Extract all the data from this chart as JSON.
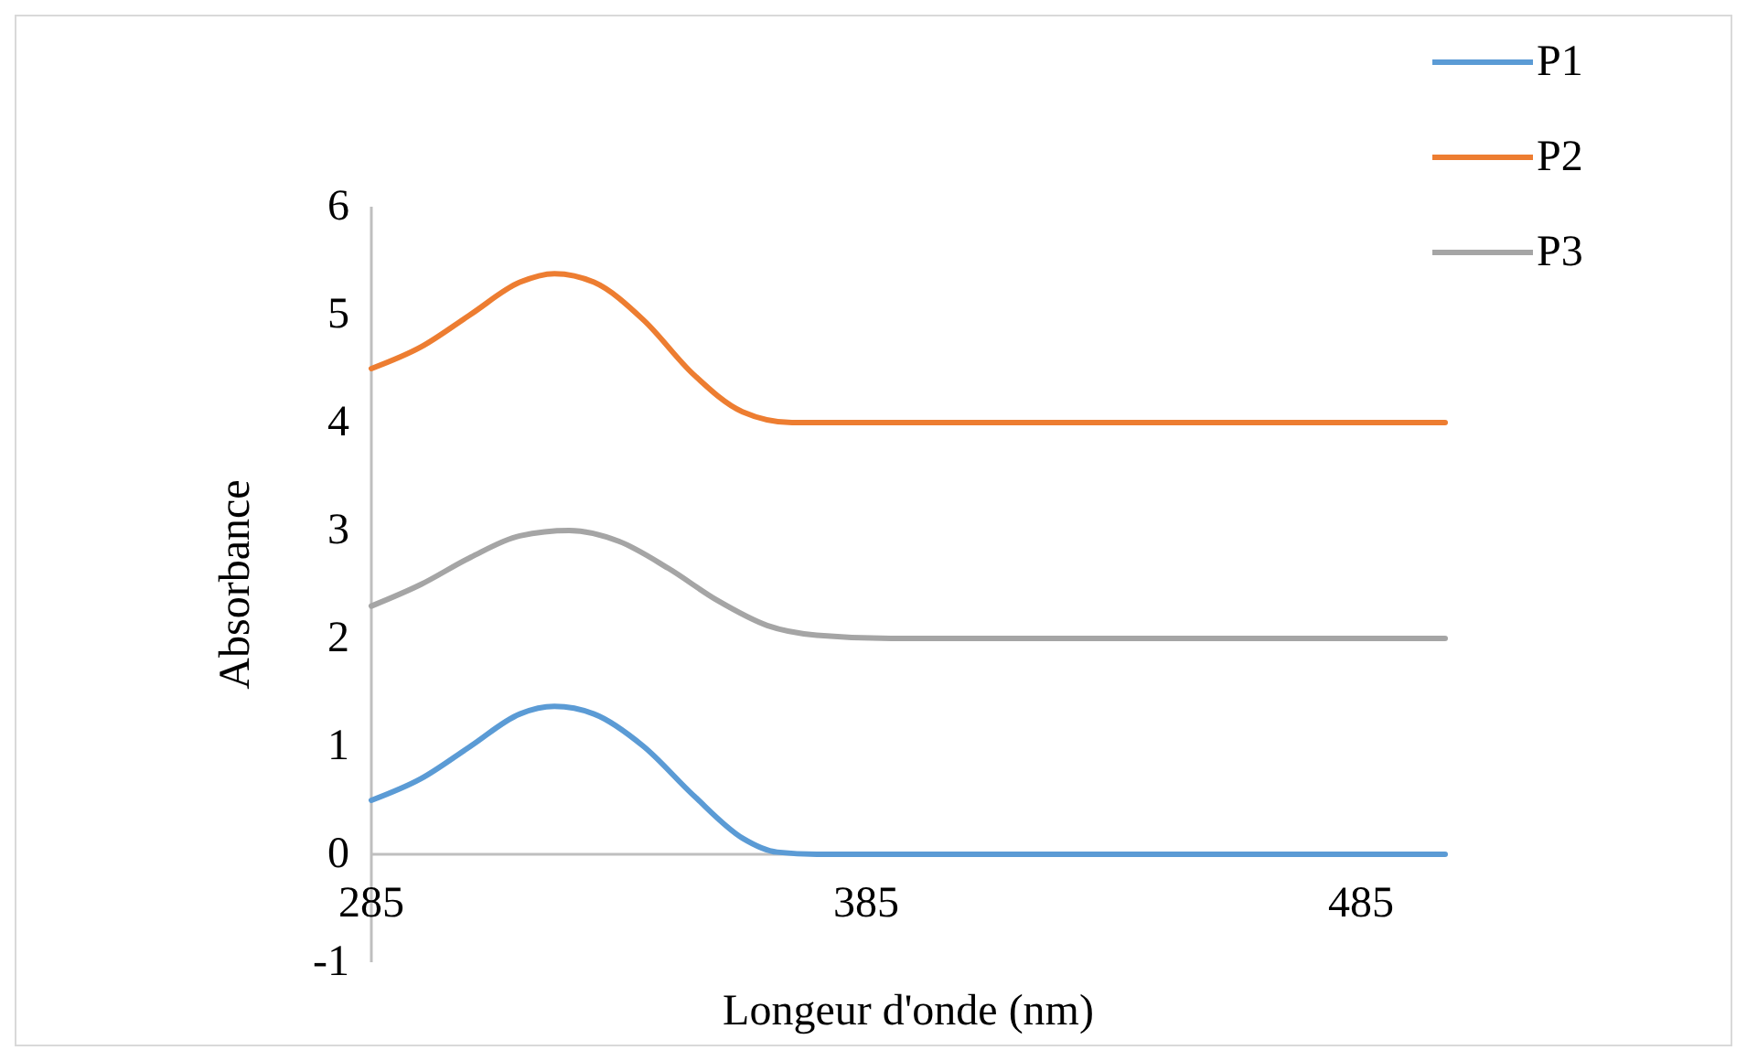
{
  "chart_data": {
    "type": "line",
    "xlabel": "Longeur  d'onde (nm)",
    "ylabel": "Absorbance",
    "xlim": [
      285,
      502
    ],
    "xticks": [
      285,
      385,
      485
    ],
    "ylim": [
      -1,
      6
    ],
    "yticks": [
      -1,
      0,
      1,
      2,
      3,
      4,
      5,
      6
    ],
    "grid": false,
    "legend": "top right",
    "marker": "none",
    "line_style": "solid",
    "series": [
      {
        "name": "P1",
        "color": "#5b9bd5",
        "x": [
          285,
          295,
          305,
          315,
          322,
          330,
          340,
          350,
          360,
          367,
          375,
          400,
          450,
          502
        ],
        "values": [
          0.5,
          0.7,
          1.0,
          1.3,
          1.37,
          1.3,
          1.0,
          0.55,
          0.15,
          0.02,
          0,
          0,
          0,
          0
        ]
      },
      {
        "name": "P2",
        "color": "#ed7d31",
        "x": [
          285,
          295,
          305,
          315,
          322,
          330,
          340,
          350,
          360,
          370,
          400,
          450,
          502
        ],
        "values": [
          4.5,
          4.7,
          5.0,
          5.3,
          5.38,
          5.3,
          4.95,
          4.45,
          4.1,
          4.0,
          4.0,
          4.0,
          4.0
        ]
      },
      {
        "name": "P3",
        "color": "#a5a5a5",
        "x": [
          285,
          295,
          305,
          315,
          325,
          335,
          345,
          355,
          365,
          375,
          390,
          450,
          502
        ],
        "values": [
          2.3,
          2.5,
          2.75,
          2.95,
          3.0,
          2.9,
          2.65,
          2.35,
          2.12,
          2.03,
          2.0,
          2.0,
          2.0
        ]
      }
    ]
  }
}
